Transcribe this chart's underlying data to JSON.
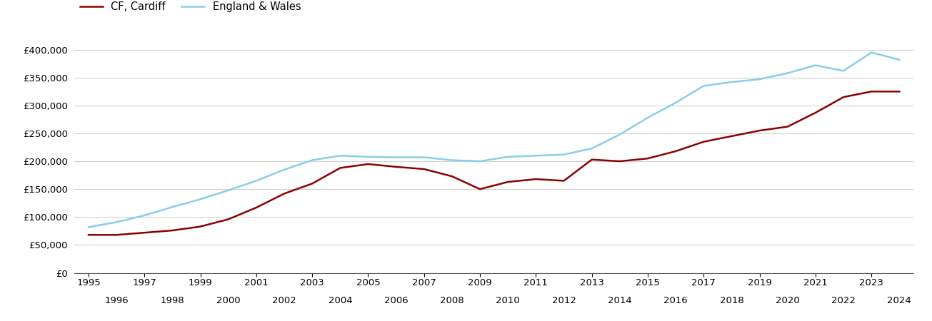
{
  "cf_cardiff": {
    "years": [
      1995,
      1996,
      1997,
      1998,
      1999,
      2000,
      2001,
      2002,
      2003,
      2004,
      2005,
      2006,
      2007,
      2008,
      2009,
      2010,
      2011,
      2012,
      2013,
      2014,
      2015,
      2016,
      2017,
      2018,
      2019,
      2020,
      2021,
      2022,
      2023,
      2024
    ],
    "values": [
      68000,
      68000,
      72000,
      76000,
      83000,
      96000,
      117000,
      142000,
      160000,
      188000,
      195000,
      190000,
      186000,
      173000,
      150000,
      163000,
      168000,
      165000,
      203000,
      200000,
      205000,
      218000,
      235000,
      245000,
      255000,
      262000,
      287000,
      315000,
      325000,
      325000
    ]
  },
  "england_wales": {
    "years": [
      1995,
      1996,
      1997,
      1998,
      1999,
      2000,
      2001,
      2002,
      2003,
      2004,
      2005,
      2006,
      2007,
      2008,
      2009,
      2010,
      2011,
      2012,
      2013,
      2014,
      2015,
      2016,
      2017,
      2018,
      2019,
      2020,
      2021,
      2022,
      2023,
      2024
    ],
    "values": [
      82000,
      91000,
      103000,
      118000,
      132000,
      148000,
      165000,
      185000,
      202000,
      210000,
      208000,
      207000,
      207000,
      202000,
      200000,
      208000,
      210000,
      212000,
      223000,
      248000,
      278000,
      305000,
      335000,
      342000,
      347000,
      358000,
      372000,
      362000,
      395000,
      382000
    ]
  },
  "cf_cardiff_color": "#8B0000",
  "england_wales_color": "#87CEEB",
  "cf_cardiff_label": "CF, Cardiff",
  "england_wales_label": "England & Wales",
  "ylim": [
    0,
    420000
  ],
  "yticks": [
    0,
    50000,
    100000,
    150000,
    200000,
    250000,
    300000,
    350000,
    400000
  ],
  "xlim": [
    1994.5,
    2024.5
  ],
  "xticks_top": [
    1995,
    1997,
    1999,
    2001,
    2003,
    2005,
    2007,
    2009,
    2011,
    2013,
    2015,
    2017,
    2019,
    2021,
    2023
  ],
  "xticks_bottom": [
    1996,
    1998,
    2000,
    2002,
    2004,
    2006,
    2008,
    2010,
    2012,
    2014,
    2016,
    2018,
    2020,
    2022,
    2024
  ],
  "background_color": "#ffffff",
  "grid_color": "#d0d0d0",
  "line_width": 1.8
}
